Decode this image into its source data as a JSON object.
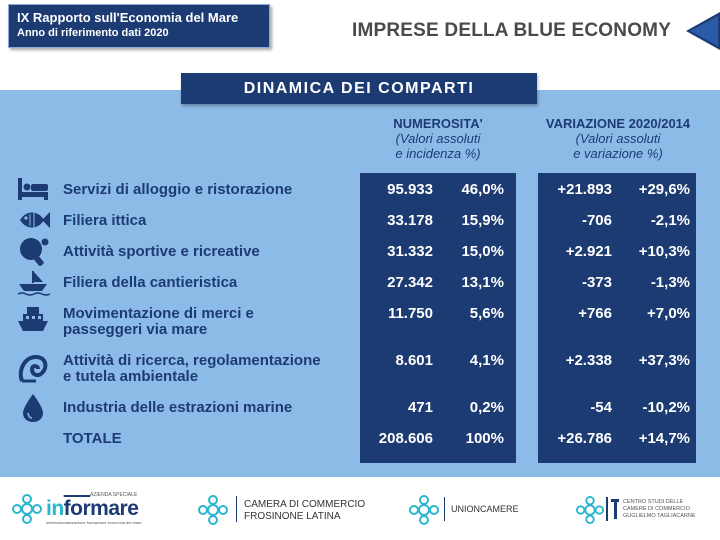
{
  "header": {
    "report_title": "IX Rapporto sull'Economia del Mare",
    "report_subtitle": "Anno di riferimento dati 2020",
    "page_title": "IMPRESE DELLA BLUE ECONOMY"
  },
  "section_title": "DINAMICA DEI COMPARTI",
  "columns": {
    "numerosita": {
      "title": "NUMEROSITA'",
      "subtitle1": "(Valori assoluti",
      "subtitle2": "e incidenza %)"
    },
    "variazione": {
      "title": "VARIAZIONE 2020/2014",
      "subtitle1": "(Valori assoluti",
      "subtitle2": "e variazione %)"
    }
  },
  "rows": [
    {
      "label1": "Servizi di alloggio e ristorazione",
      "label2": "",
      "icon": "bed-icon",
      "count": "95.933",
      "share": "46,0%",
      "var_abs": "+21.893",
      "var_pct": "+29,6%"
    },
    {
      "label1": "Filiera ittica",
      "label2": "",
      "icon": "fish-icon",
      "count": "33.178",
      "share": "15,9%",
      "var_abs": "-706",
      "var_pct": "-2,1%"
    },
    {
      "label1": "Attività sportive e ricreative",
      "label2": "",
      "icon": "paddle-ball-icon",
      "count": "31.332",
      "share": "15,0%",
      "var_abs": "+2.921",
      "var_pct": "+10,3%"
    },
    {
      "label1": "Filiera della cantieristica",
      "label2": "",
      "icon": "boat-icon",
      "count": "27.342",
      "share": "13,1%",
      "var_abs": "-373",
      "var_pct": "-1,3%"
    },
    {
      "label1": "Movimentazione di merci e",
      "label2": "passeggeri via mare",
      "icon": "ship-icon",
      "count": "11.750",
      "share": "5,6%",
      "var_abs": "+766",
      "var_pct": "+7,0%"
    },
    {
      "label1": "Attività di ricerca, regolamentazione",
      "label2": "e tutela ambientale",
      "icon": "shell-icon",
      "count": "8.601",
      "share": "4,1%",
      "var_abs": "+2.338",
      "var_pct": "+37,3%"
    },
    {
      "label1": "Industria delle estrazioni marine",
      "label2": "",
      "icon": "oil-drop-icon",
      "count": "471",
      "share": "0,2%",
      "var_abs": "-54",
      "var_pct": "-10,2%"
    },
    {
      "label1": "TOTALE",
      "label2": "",
      "icon": "",
      "count": "208.606",
      "share": "100%",
      "var_abs": "+26.786",
      "var_pct": "+14,7%"
    }
  ],
  "footer": {
    "informare": {
      "top": "AZIENDA SPECIALE",
      "brand_a": "in",
      "brand_b": "for",
      "brand_c": "mare",
      "tagline": "Internazionalizzazione formazione economia del mare"
    },
    "camera": {
      "line1": "CAMERA DI COMMERCIO",
      "line2": "FROSINONE LATINA"
    },
    "unioncamere": "UNIONCAMERE",
    "tagliacarne": {
      "line1": "CENTRO STUDI DELLE",
      "line2": "CAMERE DI COMMERCIO",
      "line3": "GUGLIELMO TAGLIACARNE"
    }
  },
  "colors": {
    "navy": "#1d3b73",
    "panel": "#8dbbe8",
    "accent": "#2ab5cf",
    "header_text": "#4a4a4a"
  }
}
